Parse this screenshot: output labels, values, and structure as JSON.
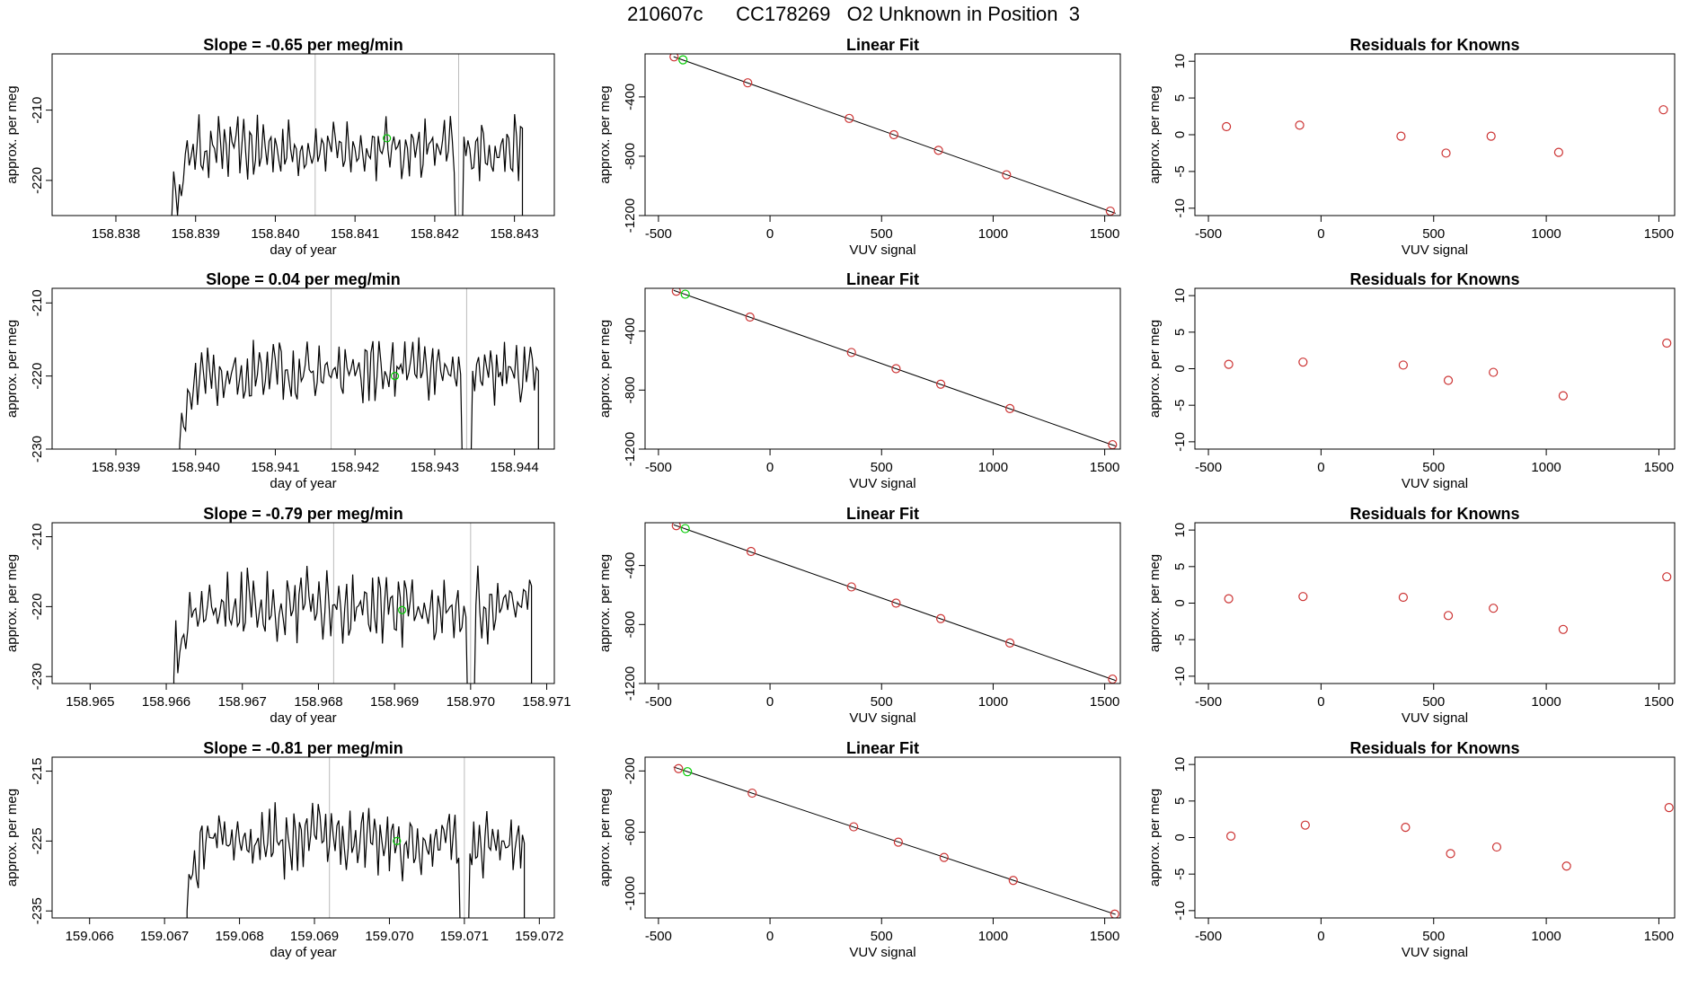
{
  "page_title": "210607c      CC178269   O2 Unknown in Position  3",
  "colors": {
    "trace": "#000000",
    "marker_green": "#00cc00",
    "marker_red": "#cc3333",
    "vline": "#bbbbbb"
  },
  "chart_data": [
    {
      "type": "line",
      "row": 1,
      "panel": "time-series",
      "title": "Slope =  -0.65  per meg/min",
      "xlabel": "day of year",
      "ylabel": "approx. per meg",
      "xlim": [
        158.8372,
        158.8435
      ],
      "ylim": [
        -225,
        -202
      ],
      "xticks": [
        158.838,
        158.839,
        158.84,
        158.841,
        158.842,
        158.843
      ],
      "xtick_labels": [
        "158.838",
        "158.839",
        "158.840",
        "158.841",
        "158.842",
        "158.843"
      ],
      "yticks": [
        -220,
        -210
      ],
      "ytick_labels": [
        "-220",
        "-210"
      ],
      "trace": {
        "x_start": 158.8387,
        "x_end": 158.8431,
        "level": -215.5,
        "amp": 2.5
      },
      "trace_gaps": [
        158.8423
      ],
      "vlines": [
        158.8405,
        158.8423
      ],
      "green_point": {
        "x": 158.8414,
        "y": -214
      }
    },
    {
      "type": "scatter",
      "row": 1,
      "panel": "linear-fit",
      "title": "Linear Fit",
      "xlabel": "VUV signal",
      "ylabel": "approx. per meg",
      "xlim": [
        -560,
        1570
      ],
      "ylim": [
        -1200,
        -110
      ],
      "xticks": [
        -500,
        0,
        500,
        1000,
        1500
      ],
      "xtick_labels": [
        "-500",
        "0",
        "500",
        "1000",
        "1500"
      ],
      "yticks": [
        -1200,
        -800,
        -400
      ],
      "ytick_labels": [
        "-1200",
        "-800",
        "-400"
      ],
      "fit_line": {
        "x": [
          -430,
          1530
        ],
        "y": [
          -130,
          -1175
        ]
      },
      "known_points": [
        {
          "x": -430,
          "y": -130
        },
        {
          "x": -100,
          "y": -305
        },
        {
          "x": 355,
          "y": -545
        },
        {
          "x": 555,
          "y": -655
        },
        {
          "x": 755,
          "y": -760
        },
        {
          "x": 1060,
          "y": -925
        },
        {
          "x": 1525,
          "y": -1170
        }
      ],
      "green_points": [
        {
          "x": -390,
          "y": -150
        }
      ]
    },
    {
      "type": "scatter",
      "row": 1,
      "panel": "residuals",
      "title": "Residuals for Knowns",
      "xlabel": "VUV signal",
      "ylabel": "approx. per meg",
      "xlim": [
        -560,
        1570
      ],
      "ylim": [
        -11,
        11
      ],
      "xticks": [
        -500,
        0,
        500,
        1000,
        1500
      ],
      "xtick_labels": [
        "-500",
        "0",
        "500",
        "1000",
        "1500"
      ],
      "yticks": [
        -10,
        -5,
        0,
        5,
        10
      ],
      "ytick_labels": [
        "-10",
        "-5",
        "0",
        "5",
        "10"
      ],
      "points": [
        {
          "x": -420,
          "y": 1.1
        },
        {
          "x": -95,
          "y": 1.3
        },
        {
          "x": 355,
          "y": -0.2
        },
        {
          "x": 555,
          "y": -2.5
        },
        {
          "x": 755,
          "y": -0.2
        },
        {
          "x": 1055,
          "y": -2.4
        },
        {
          "x": 1520,
          "y": 3.4
        }
      ]
    },
    {
      "type": "line",
      "row": 2,
      "panel": "time-series",
      "title": "Slope =  0.04  per meg/min",
      "xlabel": "day of year",
      "ylabel": "approx. per meg",
      "xlim": [
        158.9382,
        158.9445
      ],
      "ylim": [
        -230,
        -208
      ],
      "xticks": [
        158.939,
        158.94,
        158.941,
        158.942,
        158.943,
        158.944
      ],
      "xtick_labels": [
        "158.939",
        "158.940",
        "158.941",
        "158.942",
        "158.943",
        "158.944"
      ],
      "yticks": [
        -230,
        -220,
        -210
      ],
      "ytick_labels": [
        "-230",
        "-220",
        "-210"
      ],
      "trace": {
        "x_start": 158.9398,
        "x_end": 158.9443,
        "level": -219.5,
        "amp": 2.5
      },
      "trace_gaps": [
        158.9434
      ],
      "vlines": [
        158.9417,
        158.9434
      ],
      "green_point": {
        "x": 158.9425,
        "y": -220
      }
    },
    {
      "type": "scatter",
      "row": 2,
      "panel": "linear-fit",
      "title": "Linear Fit",
      "xlabel": "VUV signal",
      "ylabel": "approx. per meg",
      "xlim": [
        -560,
        1570
      ],
      "ylim": [
        -1200,
        -110
      ],
      "xticks": [
        -500,
        0,
        500,
        1000,
        1500
      ],
      "xtick_labels": [
        "-500",
        "0",
        "500",
        "1000",
        "1500"
      ],
      "yticks": [
        -1200,
        -800,
        -400
      ],
      "ytick_labels": [
        "-1200",
        "-800",
        "-400"
      ],
      "fit_line": {
        "x": [
          -420,
          1540
        ],
        "y": [
          -130,
          -1175
        ]
      },
      "known_points": [
        {
          "x": -420,
          "y": -130
        },
        {
          "x": -90,
          "y": -305
        },
        {
          "x": 365,
          "y": -545
        },
        {
          "x": 565,
          "y": -655
        },
        {
          "x": 765,
          "y": -760
        },
        {
          "x": 1075,
          "y": -925
        },
        {
          "x": 1535,
          "y": -1170
        }
      ],
      "green_points": [
        {
          "x": -380,
          "y": -150
        }
      ]
    },
    {
      "type": "scatter",
      "row": 2,
      "panel": "residuals",
      "title": "Residuals for Knowns",
      "xlabel": "VUV signal",
      "ylabel": "approx. per meg",
      "xlim": [
        -560,
        1570
      ],
      "ylim": [
        -11,
        11
      ],
      "xticks": [
        -500,
        0,
        500,
        1000,
        1500
      ],
      "xtick_labels": [
        "-500",
        "0",
        "500",
        "1000",
        "1500"
      ],
      "yticks": [
        -10,
        -5,
        0,
        5,
        10
      ],
      "ytick_labels": [
        "-10",
        "-5",
        "0",
        "5",
        "10"
      ],
      "points": [
        {
          "x": -410,
          "y": 0.6
        },
        {
          "x": -80,
          "y": 0.9
        },
        {
          "x": 365,
          "y": 0.5
        },
        {
          "x": 565,
          "y": -1.6
        },
        {
          "x": 765,
          "y": -0.5
        },
        {
          "x": 1075,
          "y": -3.7
        },
        {
          "x": 1535,
          "y": 3.5
        }
      ]
    },
    {
      "type": "line",
      "row": 3,
      "panel": "time-series",
      "title": "Slope =  -0.79  per meg/min",
      "xlabel": "day of year",
      "ylabel": "approx. per meg",
      "xlim": [
        158.9645,
        158.9711
      ],
      "ylim": [
        -231,
        -208
      ],
      "xticks": [
        158.965,
        158.966,
        158.967,
        158.968,
        158.969,
        158.97,
        158.971
      ],
      "xtick_labels": [
        "158.965",
        "158.966",
        "158.967",
        "158.968",
        "158.969",
        "158.970",
        "158.971"
      ],
      "yticks": [
        -230,
        -220,
        -210
      ],
      "ytick_labels": [
        "-230",
        "-220",
        "-210"
      ],
      "trace": {
        "x_start": 158.9661,
        "x_end": 158.9708,
        "level": -220,
        "amp": 3
      },
      "trace_gaps": [
        158.97
      ],
      "vlines": [
        158.9682,
        158.97
      ],
      "green_point": {
        "x": 158.9691,
        "y": -220.5
      }
    },
    {
      "type": "scatter",
      "row": 3,
      "panel": "linear-fit",
      "title": "Linear Fit",
      "xlabel": "VUV signal",
      "ylabel": "approx. per meg",
      "xlim": [
        -560,
        1570
      ],
      "ylim": [
        -1200,
        -110
      ],
      "xticks": [
        -500,
        0,
        500,
        1000,
        1500
      ],
      "xtick_labels": [
        "-500",
        "0",
        "500",
        "1000",
        "1500"
      ],
      "yticks": [
        -1200,
        -800,
        -400
      ],
      "ytick_labels": [
        "-1200",
        "-800",
        "-400"
      ],
      "fit_line": {
        "x": [
          -420,
          1540
        ],
        "y": [
          -130,
          -1175
        ]
      },
      "known_points": [
        {
          "x": -420,
          "y": -130
        },
        {
          "x": -85,
          "y": -305
        },
        {
          "x": 365,
          "y": -545
        },
        {
          "x": 565,
          "y": -655
        },
        {
          "x": 765,
          "y": -760
        },
        {
          "x": 1075,
          "y": -925
        },
        {
          "x": 1535,
          "y": -1170
        }
      ],
      "green_points": [
        {
          "x": -380,
          "y": -150
        }
      ]
    },
    {
      "type": "scatter",
      "row": 3,
      "panel": "residuals",
      "title": "Residuals for Knowns",
      "xlabel": "VUV signal",
      "ylabel": "approx. per meg",
      "xlim": [
        -560,
        1570
      ],
      "ylim": [
        -11,
        11
      ],
      "xticks": [
        -500,
        0,
        500,
        1000,
        1500
      ],
      "xtick_labels": [
        "-500",
        "0",
        "500",
        "1000",
        "1500"
      ],
      "yticks": [
        -10,
        -5,
        0,
        5,
        10
      ],
      "ytick_labels": [
        "-10",
        "-5",
        "0",
        "5",
        "10"
      ],
      "points": [
        {
          "x": -410,
          "y": 0.6
        },
        {
          "x": -80,
          "y": 0.9
        },
        {
          "x": 365,
          "y": 0.8
        },
        {
          "x": 565,
          "y": -1.7
        },
        {
          "x": 765,
          "y": -0.7
        },
        {
          "x": 1075,
          "y": -3.6
        },
        {
          "x": 1535,
          "y": 3.6
        }
      ]
    },
    {
      "type": "line",
      "row": 4,
      "panel": "time-series",
      "title": "Slope =  -0.81  per meg/min",
      "xlabel": "day of year",
      "ylabel": "approx. per meg",
      "xlim": [
        159.0655,
        159.0722
      ],
      "ylim": [
        -236,
        -213
      ],
      "xticks": [
        159.066,
        159.067,
        159.068,
        159.069,
        159.07,
        159.071,
        159.072
      ],
      "xtick_labels": [
        "159.066",
        "159.067",
        "159.068",
        "159.069",
        "159.070",
        "159.071",
        "159.072"
      ],
      "yticks": [
        -235,
        -225,
        -215
      ],
      "ytick_labels": [
        "-235",
        "-225",
        "-215"
      ],
      "trace": {
        "x_start": 159.0673,
        "x_end": 159.0718,
        "level": -225,
        "amp": 3
      },
      "trace_gaps": [
        159.071
      ],
      "vlines": [
        159.0692,
        159.071
      ],
      "green_point": {
        "x": 159.0701,
        "y": -225
      }
    },
    {
      "type": "scatter",
      "row": 4,
      "panel": "linear-fit",
      "title": "Linear Fit",
      "xlabel": "VUV signal",
      "ylabel": "approx. per meg",
      "xlim": [
        -560,
        1570
      ],
      "ylim": [
        -1160,
        -110
      ],
      "xticks": [
        -500,
        0,
        500,
        1000,
        1500
      ],
      "xtick_labels": [
        "-500",
        "0",
        "500",
        "1000",
        "1500"
      ],
      "yticks": [
        -1000,
        -600,
        -200
      ],
      "ytick_labels": [
        "-1000",
        "-600",
        "-200"
      ],
      "fit_line": {
        "x": [
          -410,
          1545
        ],
        "y": [
          -185,
          -1135
        ]
      },
      "known_points": [
        {
          "x": -410,
          "y": -185
        },
        {
          "x": -80,
          "y": -345
        },
        {
          "x": 375,
          "y": -565
        },
        {
          "x": 575,
          "y": -665
        },
        {
          "x": 780,
          "y": -765
        },
        {
          "x": 1090,
          "y": -915
        },
        {
          "x": 1545,
          "y": -1135
        }
      ],
      "green_points": [
        {
          "x": -370,
          "y": -205
        }
      ]
    },
    {
      "type": "scatter",
      "row": 4,
      "panel": "residuals",
      "title": "Residuals for Knowns",
      "xlabel": "VUV signal",
      "ylabel": "approx. per meg",
      "xlim": [
        -560,
        1570
      ],
      "ylim": [
        -11,
        11
      ],
      "xticks": [
        -500,
        0,
        500,
        1000,
        1500
      ],
      "xtick_labels": [
        "-500",
        "0",
        "500",
        "1000",
        "1500"
      ],
      "yticks": [
        -10,
        -5,
        0,
        5,
        10
      ],
      "ytick_labels": [
        "-10",
        "-5",
        "0",
        "5",
        "10"
      ],
      "points": [
        {
          "x": -400,
          "y": 0.2
        },
        {
          "x": -70,
          "y": 1.7
        },
        {
          "x": 375,
          "y": 1.4
        },
        {
          "x": 575,
          "y": -2.2
        },
        {
          "x": 780,
          "y": -1.3
        },
        {
          "x": 1090,
          "y": -3.9
        },
        {
          "x": 1545,
          "y": 4.1
        }
      ]
    }
  ]
}
